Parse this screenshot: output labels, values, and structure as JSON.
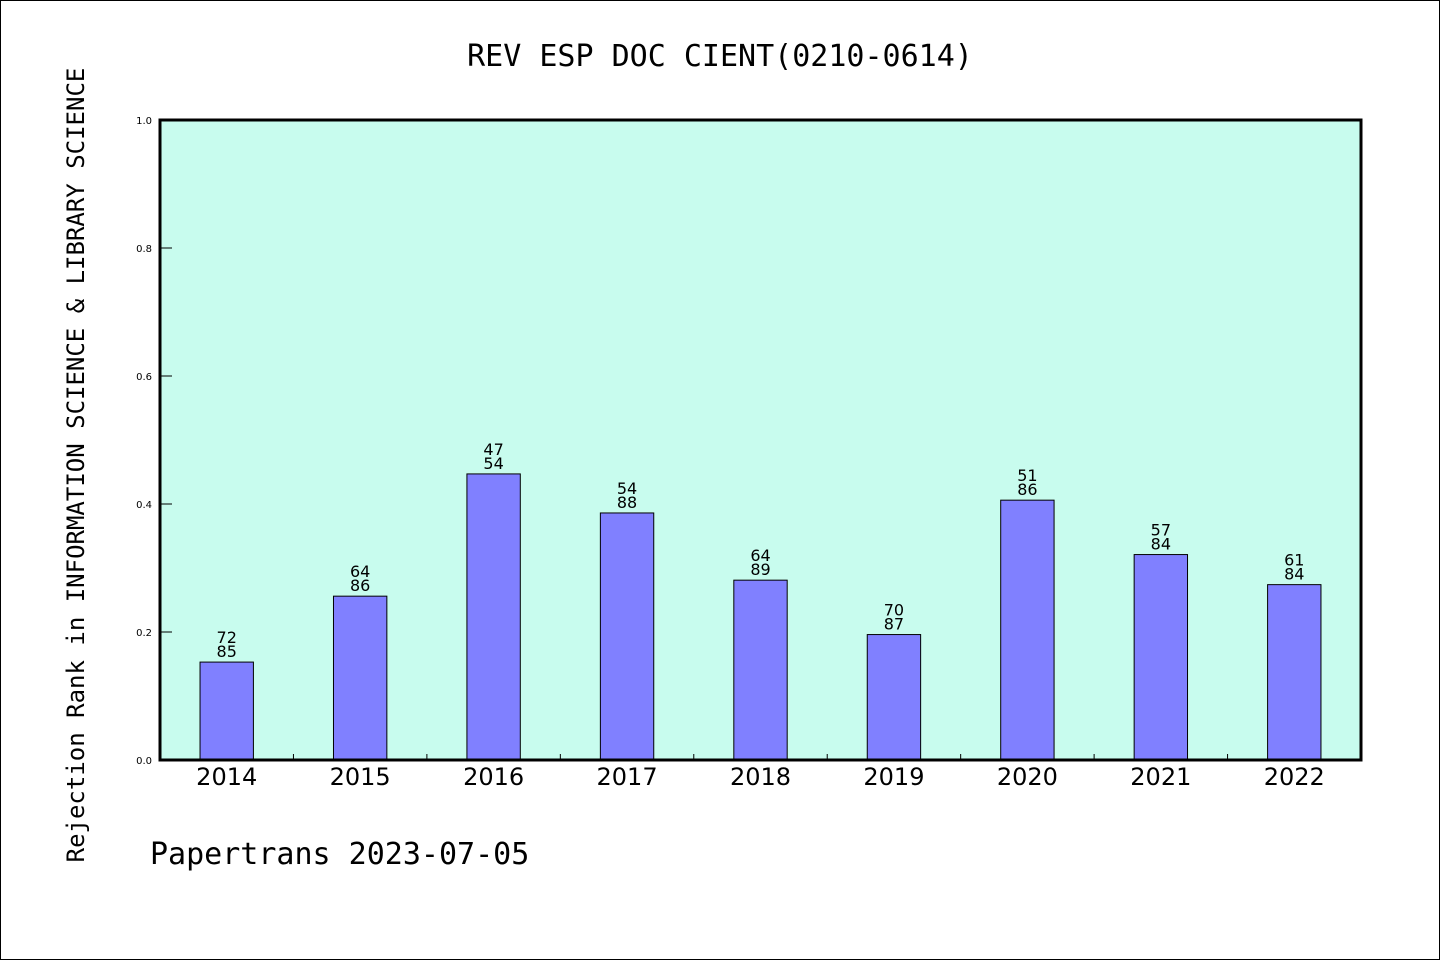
{
  "chart_data": {
    "type": "bar",
    "title": "REV ESP DOC CIENT(0210-0614)",
    "ylabel": "Rejection Rank in INFORMATION SCIENCE & LIBRARY SCIENCE",
    "xlabel": "",
    "ylim": [
      0.0,
      1.0
    ],
    "yticks": [
      "0.0",
      "0.2",
      "0.4",
      "0.6",
      "0.8",
      "1.0"
    ],
    "categories": [
      "2014",
      "2015",
      "2016",
      "2017",
      "2018",
      "2019",
      "2020",
      "2021",
      "2022"
    ],
    "values": [
      0.153,
      0.256,
      0.447,
      0.386,
      0.281,
      0.196,
      0.406,
      0.321,
      0.274
    ],
    "labels_top": [
      "72",
      "64",
      "47",
      "54",
      "64",
      "70",
      "51",
      "57",
      "61"
    ],
    "labels_bottom": [
      "85",
      "86",
      "54",
      "88",
      "89",
      "87",
      "86",
      "84",
      "84"
    ],
    "plot_background": "#c8fcee",
    "bar_color": "#8080ff",
    "grid": false,
    "footer": "Papertrans 2023-07-05"
  }
}
